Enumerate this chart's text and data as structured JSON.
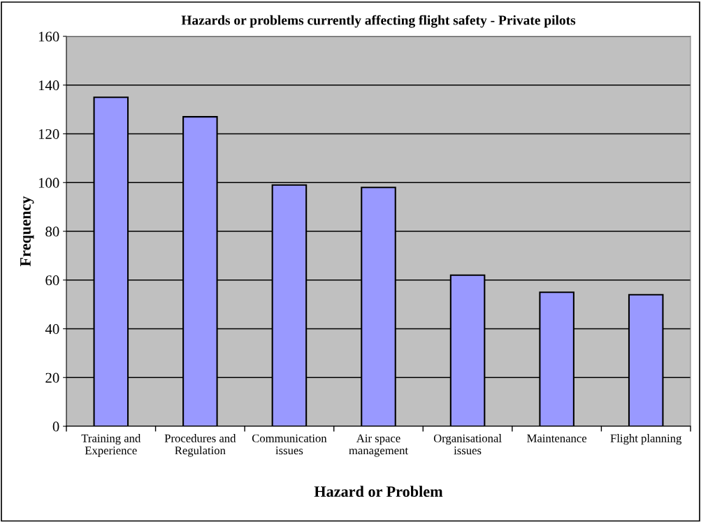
{
  "chart_data": {
    "type": "bar",
    "title": "Hazards or problems currently affecting flight safety - Private pilots",
    "xlabel": "Hazard or Problem",
    "ylabel": "Frequency",
    "categories": [
      "Training and\nExperience",
      "Procedures and\nRegulation",
      "Communication\nissues",
      "Air space\nmanagement",
      "Organisational\nissues",
      "Maintenance",
      "Flight planning"
    ],
    "values": [
      135,
      127,
      99,
      98,
      62,
      55,
      54
    ],
    "color": "#9999ff",
    "ylim": [
      0,
      160
    ],
    "yticks": [
      0,
      20,
      40,
      60,
      80,
      100,
      120,
      140,
      160
    ],
    "grid": "y",
    "legend": false
  }
}
